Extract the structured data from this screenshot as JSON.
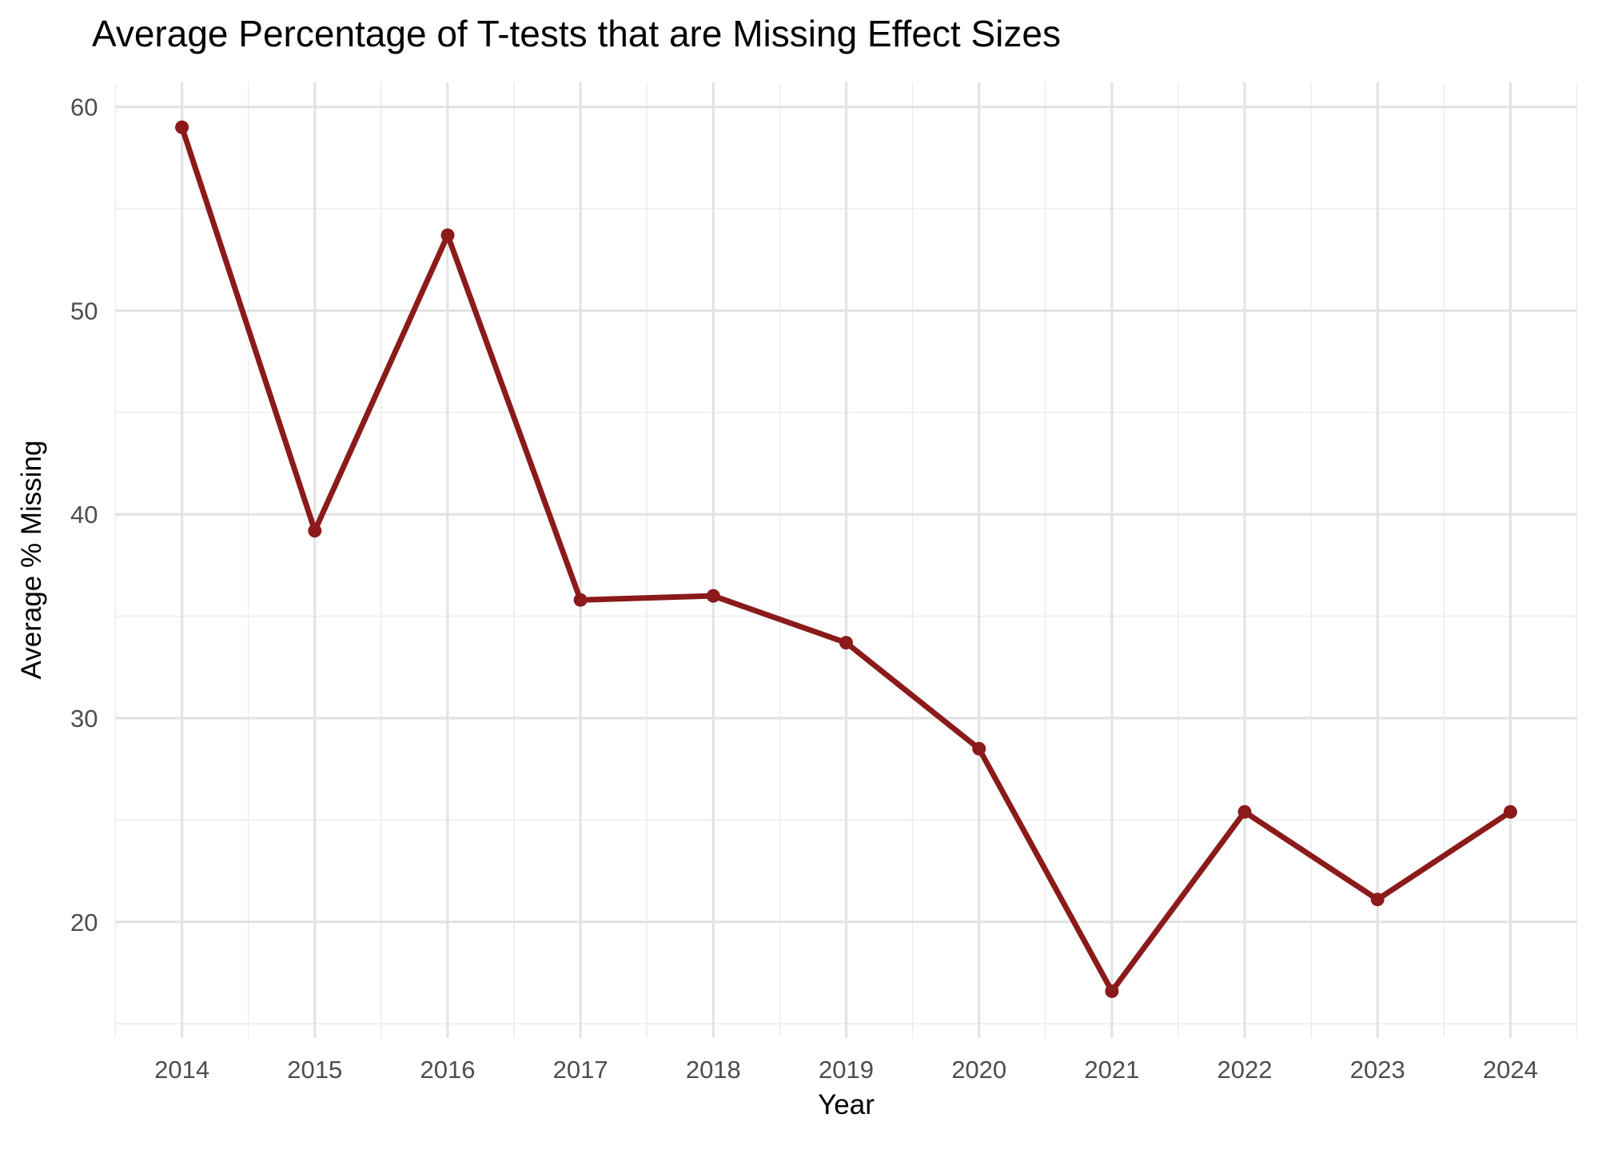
{
  "title": "Average Percentage of T-tests that are Missing Effect Sizes",
  "chart_data": {
    "type": "line",
    "title": "Average Percentage of T-tests that are Missing Effect Sizes",
    "xlabel": "Year",
    "ylabel": "Average % Missing",
    "x": [
      2014,
      2015,
      2016,
      2017,
      2018,
      2019,
      2020,
      2021,
      2022,
      2023,
      2024
    ],
    "series": [
      {
        "name": "Average % Missing",
        "values": [
          59.0,
          39.2,
          53.7,
          35.8,
          36.0,
          33.7,
          28.5,
          16.6,
          25.4,
          21.1,
          25.4
        ]
      }
    ],
    "x_domain": [
      2013.5,
      2024.5
    ],
    "ylim": [
      14.3,
      61.2
    ],
    "x_ticks": [
      2014,
      2015,
      2016,
      2017,
      2018,
      2019,
      2020,
      2021,
      2022,
      2023,
      2024
    ],
    "x_minor_ticks": [
      2013.5,
      2014.5,
      2015.5,
      2016.5,
      2017.5,
      2018.5,
      2019.5,
      2020.5,
      2021.5,
      2022.5,
      2023.5,
      2024.5
    ],
    "y_ticks": [
      20,
      30,
      40,
      50,
      60
    ],
    "y_minor_ticks": [
      15,
      25,
      35,
      45,
      55
    ],
    "grid": true,
    "legend": "none",
    "colors": {
      "line": "#8B1A1A",
      "point": "#8B1A1A",
      "grid_major": "#E2E2E2",
      "grid_minor": "#EFEFEF",
      "tick_label": "#4D4D4D",
      "text": "#000000",
      "background": "#FFFFFF"
    }
  }
}
